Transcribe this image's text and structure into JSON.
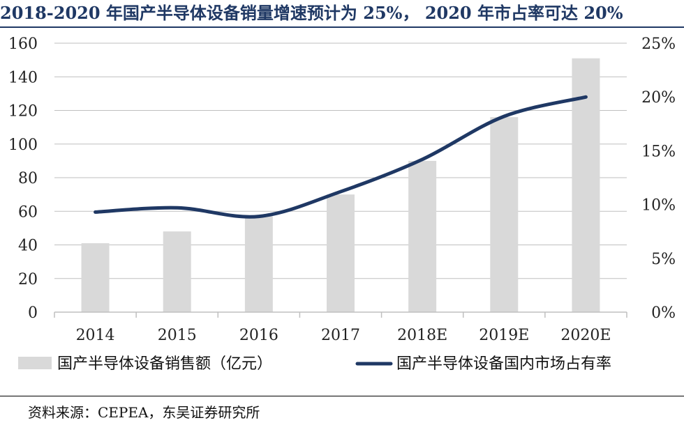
{
  "title": "2018-2020 年国产半导体设备销量增速预计为 25%， 2020 年市占率可达 20%",
  "source": "资料来源：CEPEA，东吴证券研究所",
  "colors": {
    "bar": "#d9d9d9",
    "line": "#1f3864",
    "axis": "#bfbfbf",
    "title": "#1f3864"
  },
  "chart_data": {
    "type": "bar",
    "categories": [
      "2014",
      "2015",
      "2016",
      "2017",
      "2018E",
      "2019E",
      "2020E"
    ],
    "series": [
      {
        "name": "国产半导体设备销售额（亿元）",
        "type": "bar",
        "axis": "left",
        "values": [
          41,
          48,
          57,
          70,
          90,
          116,
          151
        ]
      },
      {
        "name": "国产半导体设备国内市场占有率",
        "type": "line",
        "axis": "right",
        "values": [
          9.3,
          9.7,
          8.9,
          11.2,
          14.2,
          18.2,
          20.0
        ]
      }
    ],
    "left_axis": {
      "ticks": [
        "0",
        "20",
        "40",
        "60",
        "80",
        "100",
        "120",
        "140",
        "160"
      ],
      "ylim": [
        0,
        160
      ]
    },
    "right_axis": {
      "ticks": [
        "0%",
        "5%",
        "10%",
        "15%",
        "20%",
        "25%"
      ],
      "ylim": [
        0,
        25
      ]
    },
    "legend_position": "bottom"
  }
}
